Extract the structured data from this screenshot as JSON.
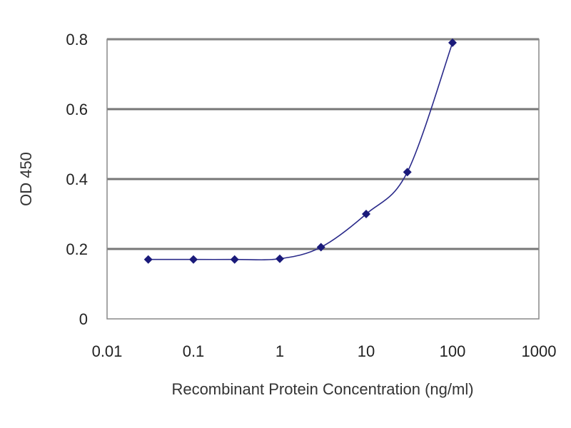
{
  "chart_data": {
    "type": "line",
    "title": "",
    "xlabel": "Recombinant Protein Concentration (ng/ml)",
    "ylabel": "OD 450",
    "xscale": "log",
    "xlim": [
      0.01,
      1000
    ],
    "ylim": [
      0,
      0.8
    ],
    "xticks": [
      "0.01",
      "0.1",
      "1",
      "10",
      "100",
      "1000"
    ],
    "yticks": [
      "0",
      "0.2",
      "0.4",
      "0.6",
      "0.8"
    ],
    "grid": "horizontal",
    "legend": "none",
    "series": [
      {
        "x": [
          0.03,
          0.1,
          0.3,
          1,
          3,
          10,
          30,
          100
        ],
        "y": [
          0.17,
          0.17,
          0.17,
          0.172,
          0.205,
          0.3,
          0.42,
          0.79
        ],
        "color": "#1a1a7a",
        "marker": "diamond"
      }
    ]
  }
}
